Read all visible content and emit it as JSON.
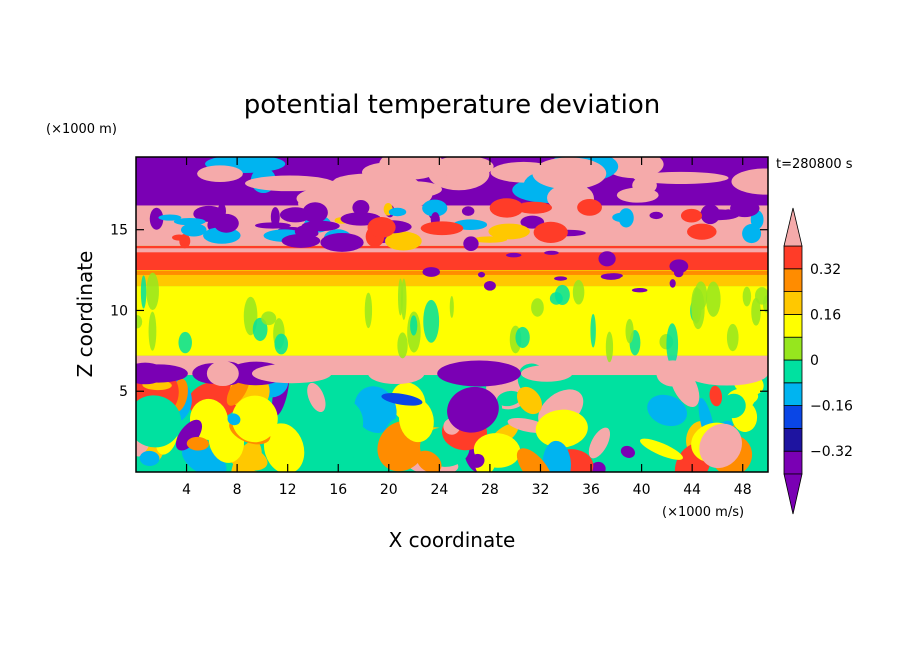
{
  "chart_data": {
    "type": "heatmap",
    "title": "potential temperature deviation",
    "xlabel": "X coordinate",
    "ylabel": "Z coordinate",
    "x_units": "(×1000 m/s)",
    "y_units": "(×1000 m)",
    "time_label": "t=280800 s",
    "xlim": [
      0,
      50
    ],
    "ylim": [
      0,
      19.5
    ],
    "x_ticks": [
      "4",
      "8",
      "12",
      "16",
      "20",
      "24",
      "28",
      "32",
      "36",
      "40",
      "44",
      "48"
    ],
    "x_tick_values": [
      4,
      8,
      12,
      16,
      20,
      24,
      28,
      32,
      36,
      40,
      44,
      48
    ],
    "y_ticks": [
      "5",
      "10",
      "15"
    ],
    "y_tick_values": [
      5,
      10,
      15
    ],
    "colorbar": {
      "levels": [
        -0.4,
        -0.32,
        -0.24,
        -0.16,
        -0.08,
        0,
        0.08,
        0.16,
        0.24,
        0.32,
        0.4
      ],
      "labels": [
        "0.32",
        "0.16",
        "0",
        "−0.16",
        "−0.32"
      ],
      "label_values": [
        0.32,
        0.16,
        0,
        -0.16,
        -0.32
      ],
      "colors": [
        "#7a00b4",
        "#1e14a0",
        "#0a46e6",
        "#00b4f0",
        "#00e1a0",
        "#96e61e",
        "#ffff00",
        "#ffc800",
        "#ff8c00",
        "#ff3c28",
        "#f5aaaa"
      ],
      "extend": "both"
    },
    "layers": [
      {
        "z_range": [
          16.5,
          19.5
        ],
        "pattern": "purple and pink blobs"
      },
      {
        "z_range": [
          14,
          16.5
        ],
        "pattern": "mixed"
      },
      {
        "z_range": [
          12.5,
          14
        ],
        "value": 0.3
      },
      {
        "z_range": [
          11.5,
          12.5
        ],
        "value": 0.15
      },
      {
        "z_range": [
          7.2,
          11.5
        ],
        "value": 0.02
      },
      {
        "z_range": [
          6,
          7.2
        ],
        "value": 0.45
      },
      {
        "z_range": [
          0,
          6
        ],
        "pattern": "turbulent mixed"
      }
    ]
  }
}
